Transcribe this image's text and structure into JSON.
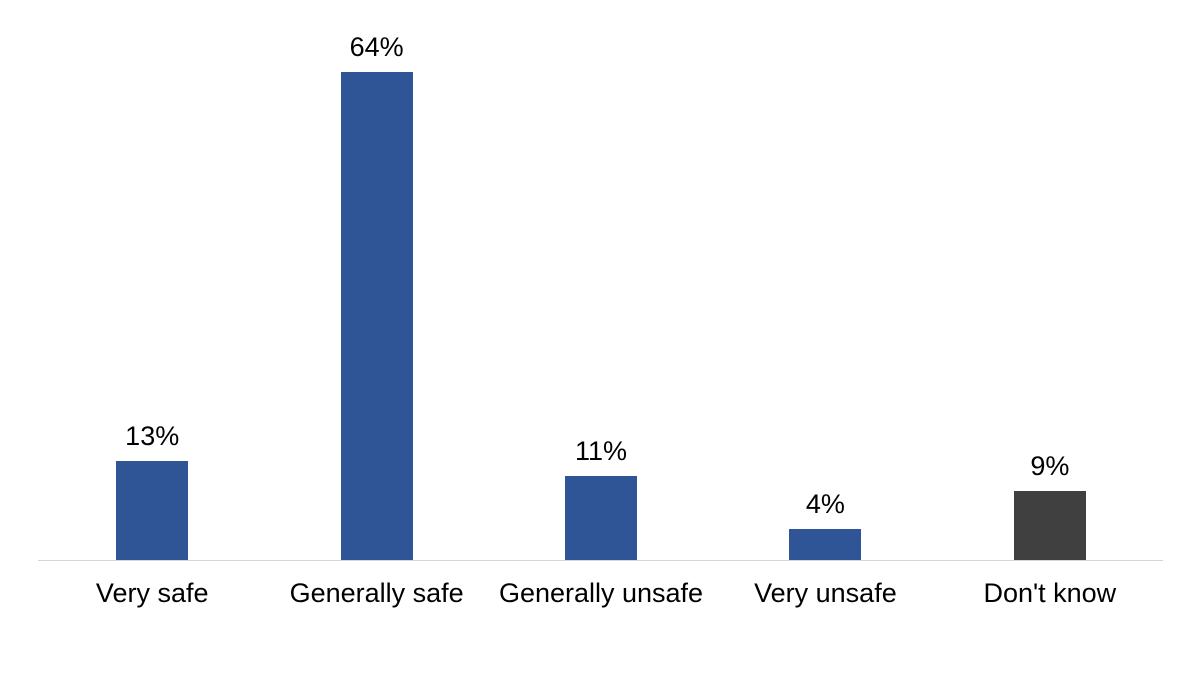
{
  "chart_data": {
    "type": "bar",
    "categories": [
      "Very safe",
      "Generally safe",
      "Generally unsafe",
      "Very unsafe",
      "Don't know"
    ],
    "values": [
      13,
      64,
      11,
      4,
      9
    ],
    "value_labels": [
      "13%",
      "64%",
      "11%",
      "4%",
      "9%"
    ],
    "bar_colors": [
      "#2F5597",
      "#2F5597",
      "#2F5597",
      "#2F5597",
      "#404040"
    ],
    "title": "",
    "xlabel": "",
    "ylabel": "",
    "ylim": [
      0,
      73
    ],
    "grid": false,
    "legend": false,
    "axis_line_color": "#D6D6D6",
    "background": "#FFFFFF",
    "text_color": "#000000"
  }
}
